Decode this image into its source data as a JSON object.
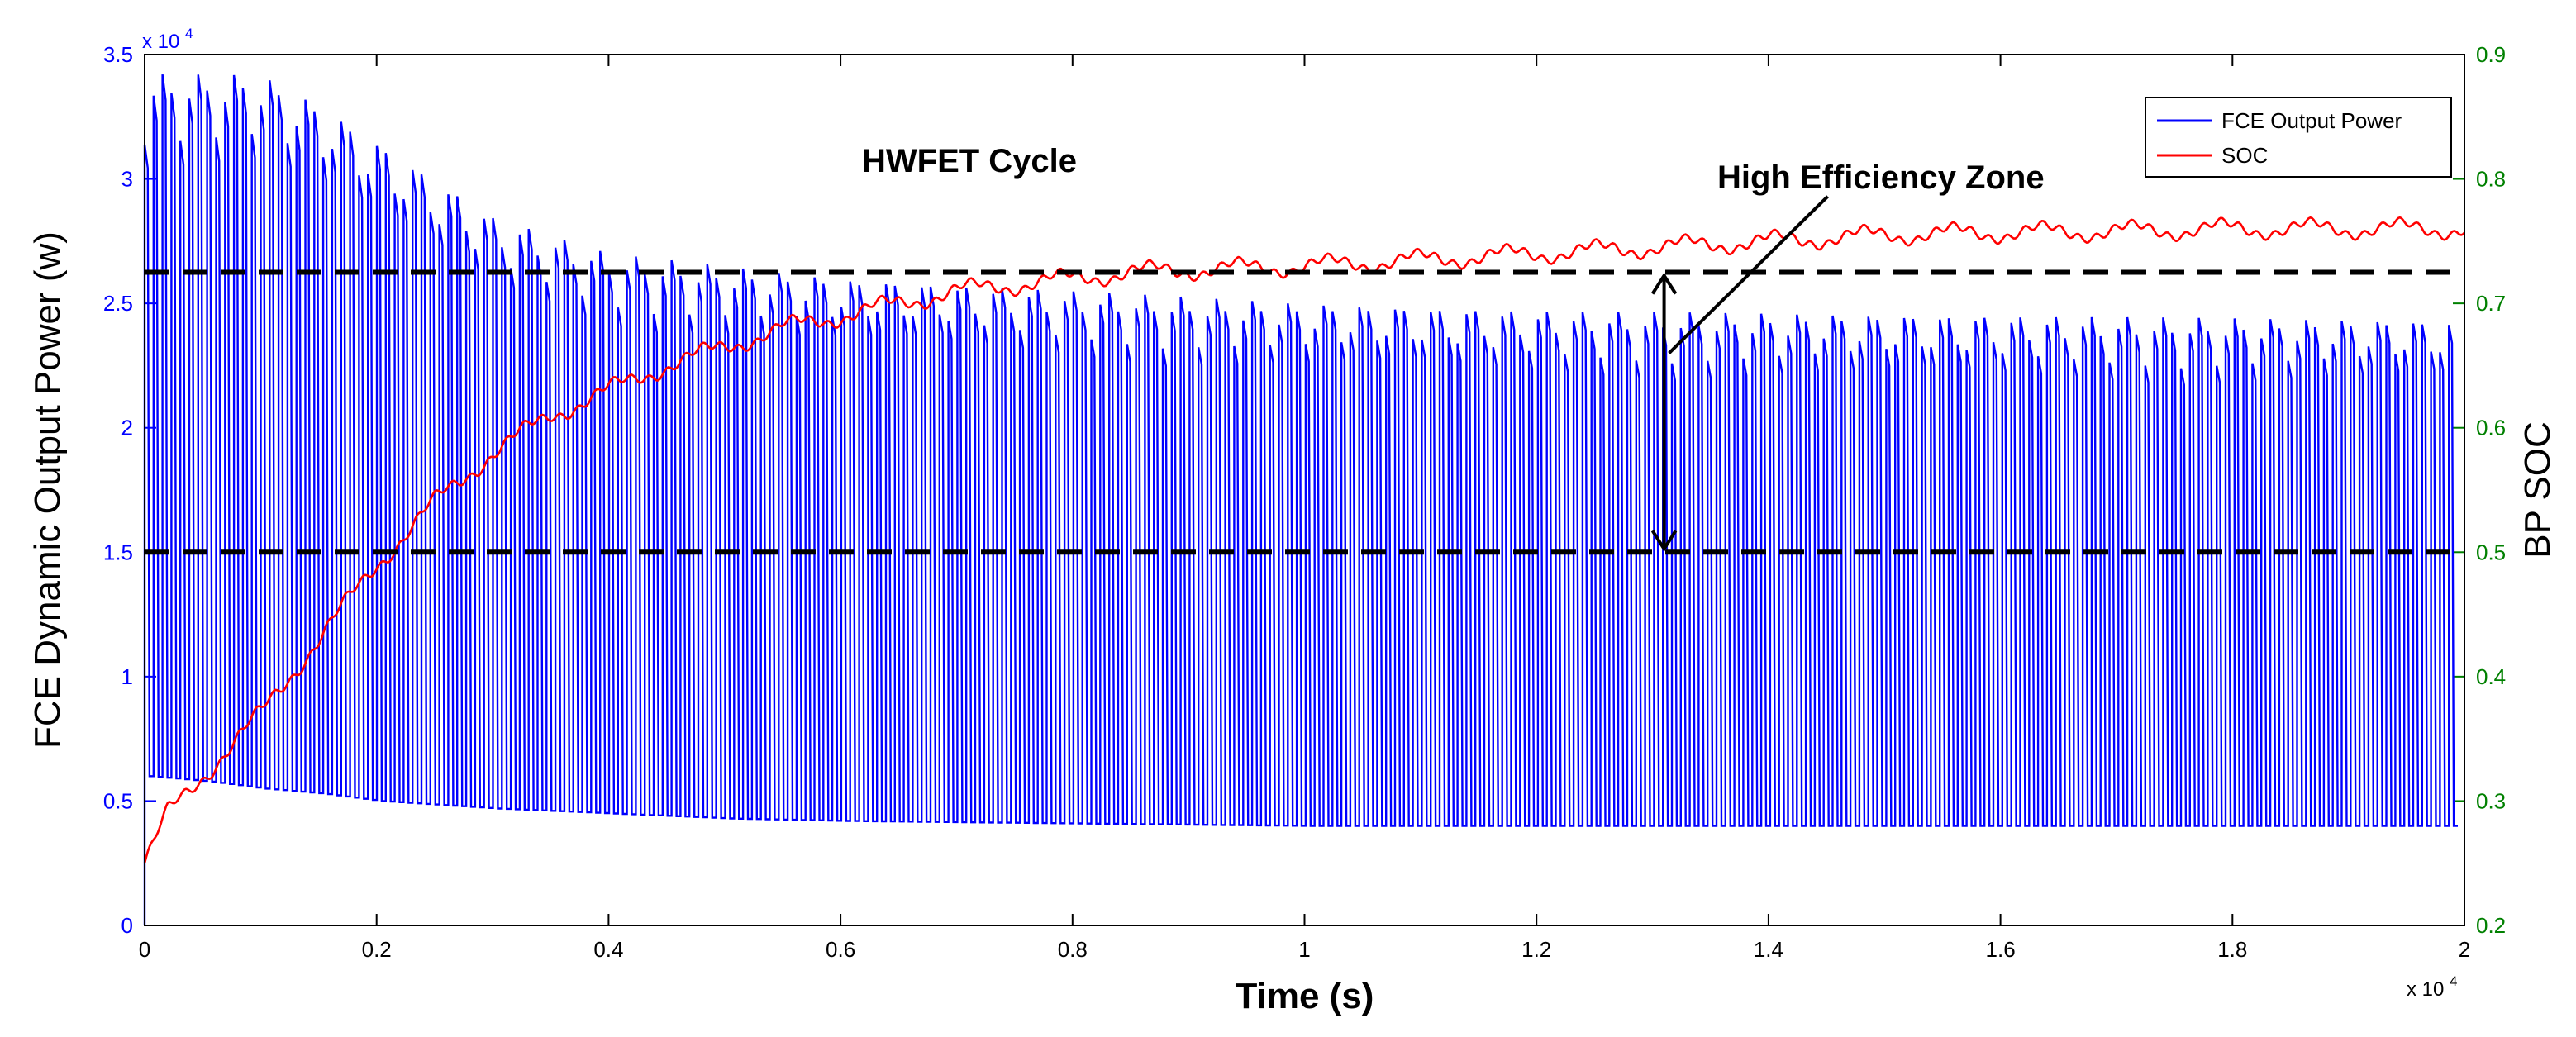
{
  "chart_data": {
    "type": "line",
    "title": "HWFET Cycle",
    "xlabel": "Time (s)",
    "ylabel_left": "FCE Dynamic Output Power (w)",
    "ylabel_right": "BP SOC",
    "x_multiplier": "x 10",
    "x_multiplier_exp": "4",
    "y_multiplier": "x 10",
    "y_multiplier_exp": "4",
    "xlim": [
      0,
      2
    ],
    "ylim_left": [
      0,
      3.5
    ],
    "ylim_right": [
      0.2,
      0.9
    ],
    "x_ticks": [
      "0",
      "0.2",
      "0.4",
      "0.6",
      "0.8",
      "1",
      "1.2",
      "1.4",
      "1.6",
      "1.8",
      "2"
    ],
    "y_left_ticks": [
      "0",
      "0.5",
      "1",
      "1.5",
      "2",
      "2.5",
      "3",
      "3.5"
    ],
    "y_right_ticks": [
      "0.2",
      "0.3",
      "0.4",
      "0.5",
      "0.6",
      "0.7",
      "0.8",
      "0.9"
    ],
    "legend": {
      "position": "top-right",
      "entries": [
        "FCE Output Power",
        "SOC"
      ]
    },
    "annotation": "High Efficiency Zone",
    "zone_soc": [
      0.5,
      0.725
    ],
    "zone_arrow_x": 1.31,
    "series": [
      {
        "name": "FCE Output Power",
        "axis": "left",
        "color": "#0000ff",
        "period": 0.0077,
        "envelope_x": [
          0,
          0.05,
          0.1,
          0.15,
          0.2,
          0.3,
          0.4,
          0.5,
          0.6,
          0.8,
          1.0,
          1.2,
          1.4,
          1.6,
          1.8,
          2.0
        ],
        "envelope_max": [
          3.42,
          3.42,
          3.42,
          3.3,
          3.15,
          2.85,
          2.7,
          2.65,
          2.6,
          2.55,
          2.5,
          2.47,
          2.46,
          2.45,
          2.44,
          2.43
        ],
        "envelope_min": [
          0.6,
          0.58,
          0.55,
          0.53,
          0.5,
          0.47,
          0.45,
          0.43,
          0.42,
          0.41,
          0.4,
          0.4,
          0.4,
          0.4,
          0.4,
          0.4
        ]
      },
      {
        "name": "SOC",
        "axis": "right",
        "color": "#ff0000",
        "x": [
          0,
          0.005,
          0.02,
          0.05,
          0.1,
          0.15,
          0.2,
          0.25,
          0.3,
          0.35,
          0.4,
          0.45,
          0.5,
          0.55,
          0.6,
          0.65,
          0.7,
          0.75,
          0.8,
          0.85,
          0.9,
          1.0,
          1.1,
          1.2,
          1.3,
          1.4,
          1.5,
          1.6,
          1.7,
          1.8,
          1.9,
          2.0
        ],
        "values": [
          0.25,
          0.26,
          0.29,
          0.32,
          0.37,
          0.43,
          0.49,
          0.54,
          0.58,
          0.61,
          0.63,
          0.65,
          0.665,
          0.68,
          0.69,
          0.7,
          0.71,
          0.715,
          0.72,
          0.725,
          0.727,
          0.73,
          0.735,
          0.74,
          0.745,
          0.75,
          0.755,
          0.757,
          0.758,
          0.76,
          0.76,
          0.76
        ]
      }
    ]
  },
  "colors": {
    "left_axis": "#0000ff",
    "right_axis": "#008000",
    "zone_lines": "#000000"
  }
}
